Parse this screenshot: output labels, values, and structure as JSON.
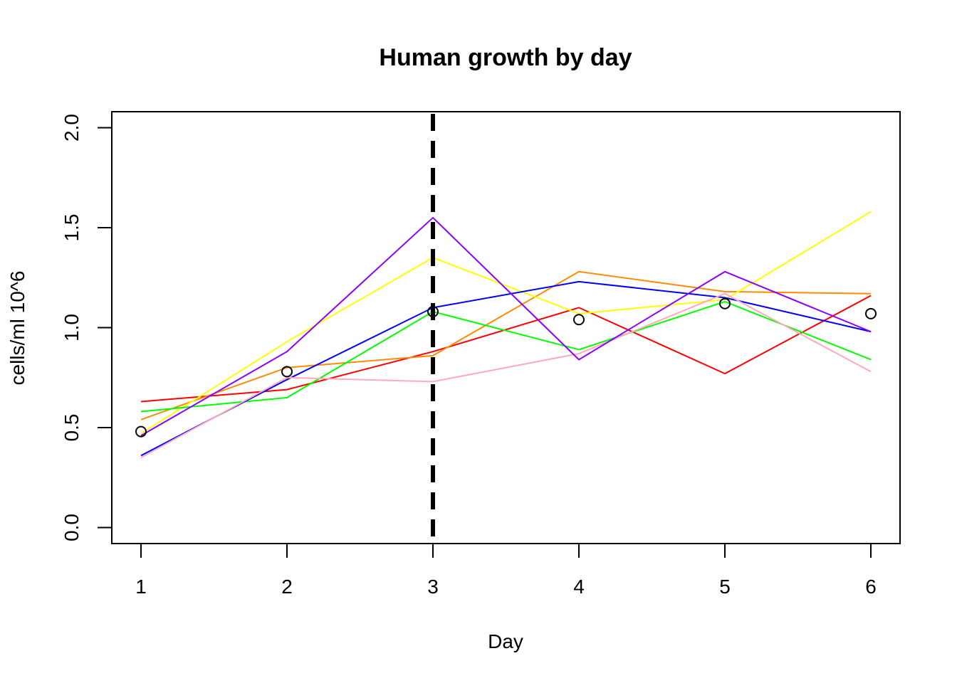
{
  "chart_data": {
    "type": "line",
    "title": "Human growth by day",
    "xlabel": "Day",
    "ylabel": "cells/ml 10^6",
    "x": [
      1,
      2,
      3,
      4,
      5,
      6
    ],
    "x_ticks": [
      "1",
      "2",
      "3",
      "4",
      "5",
      "6"
    ],
    "y_ticks": [
      "0.0",
      "0.5",
      "1.0",
      "1.5",
      "2.0"
    ],
    "xlim": [
      0.8,
      6.2
    ],
    "ylim": [
      -0.08,
      2.08
    ],
    "grid": false,
    "legend": "none",
    "series": [
      {
        "color": "#ff0000",
        "values": [
          0.63,
          0.69,
          0.88,
          1.1,
          0.77,
          1.16
        ]
      },
      {
        "color": "#ff8c00",
        "values": [
          0.54,
          0.8,
          0.86,
          1.28,
          1.18,
          1.17
        ]
      },
      {
        "color": "#ffff00",
        "values": [
          0.47,
          0.93,
          1.35,
          1.07,
          1.14,
          1.58
        ]
      },
      {
        "color": "#00ff00",
        "values": [
          0.58,
          0.65,
          1.08,
          0.89,
          1.13,
          0.84
        ]
      },
      {
        "color": "#0000ff",
        "values": [
          0.36,
          0.74,
          1.1,
          1.23,
          1.15,
          0.98
        ]
      },
      {
        "color": "#ffaabb",
        "values": [
          0.35,
          0.75,
          0.73,
          0.87,
          1.17,
          0.78
        ]
      },
      {
        "color": "#8b00ff",
        "values": [
          0.46,
          0.88,
          1.55,
          0.84,
          1.28,
          0.98
        ]
      }
    ],
    "mean_points": [
      0.48,
      0.78,
      1.08,
      1.04,
      1.12,
      1.07
    ],
    "vline": {
      "x": 3,
      "style": "dashed",
      "color": "#000000"
    }
  }
}
